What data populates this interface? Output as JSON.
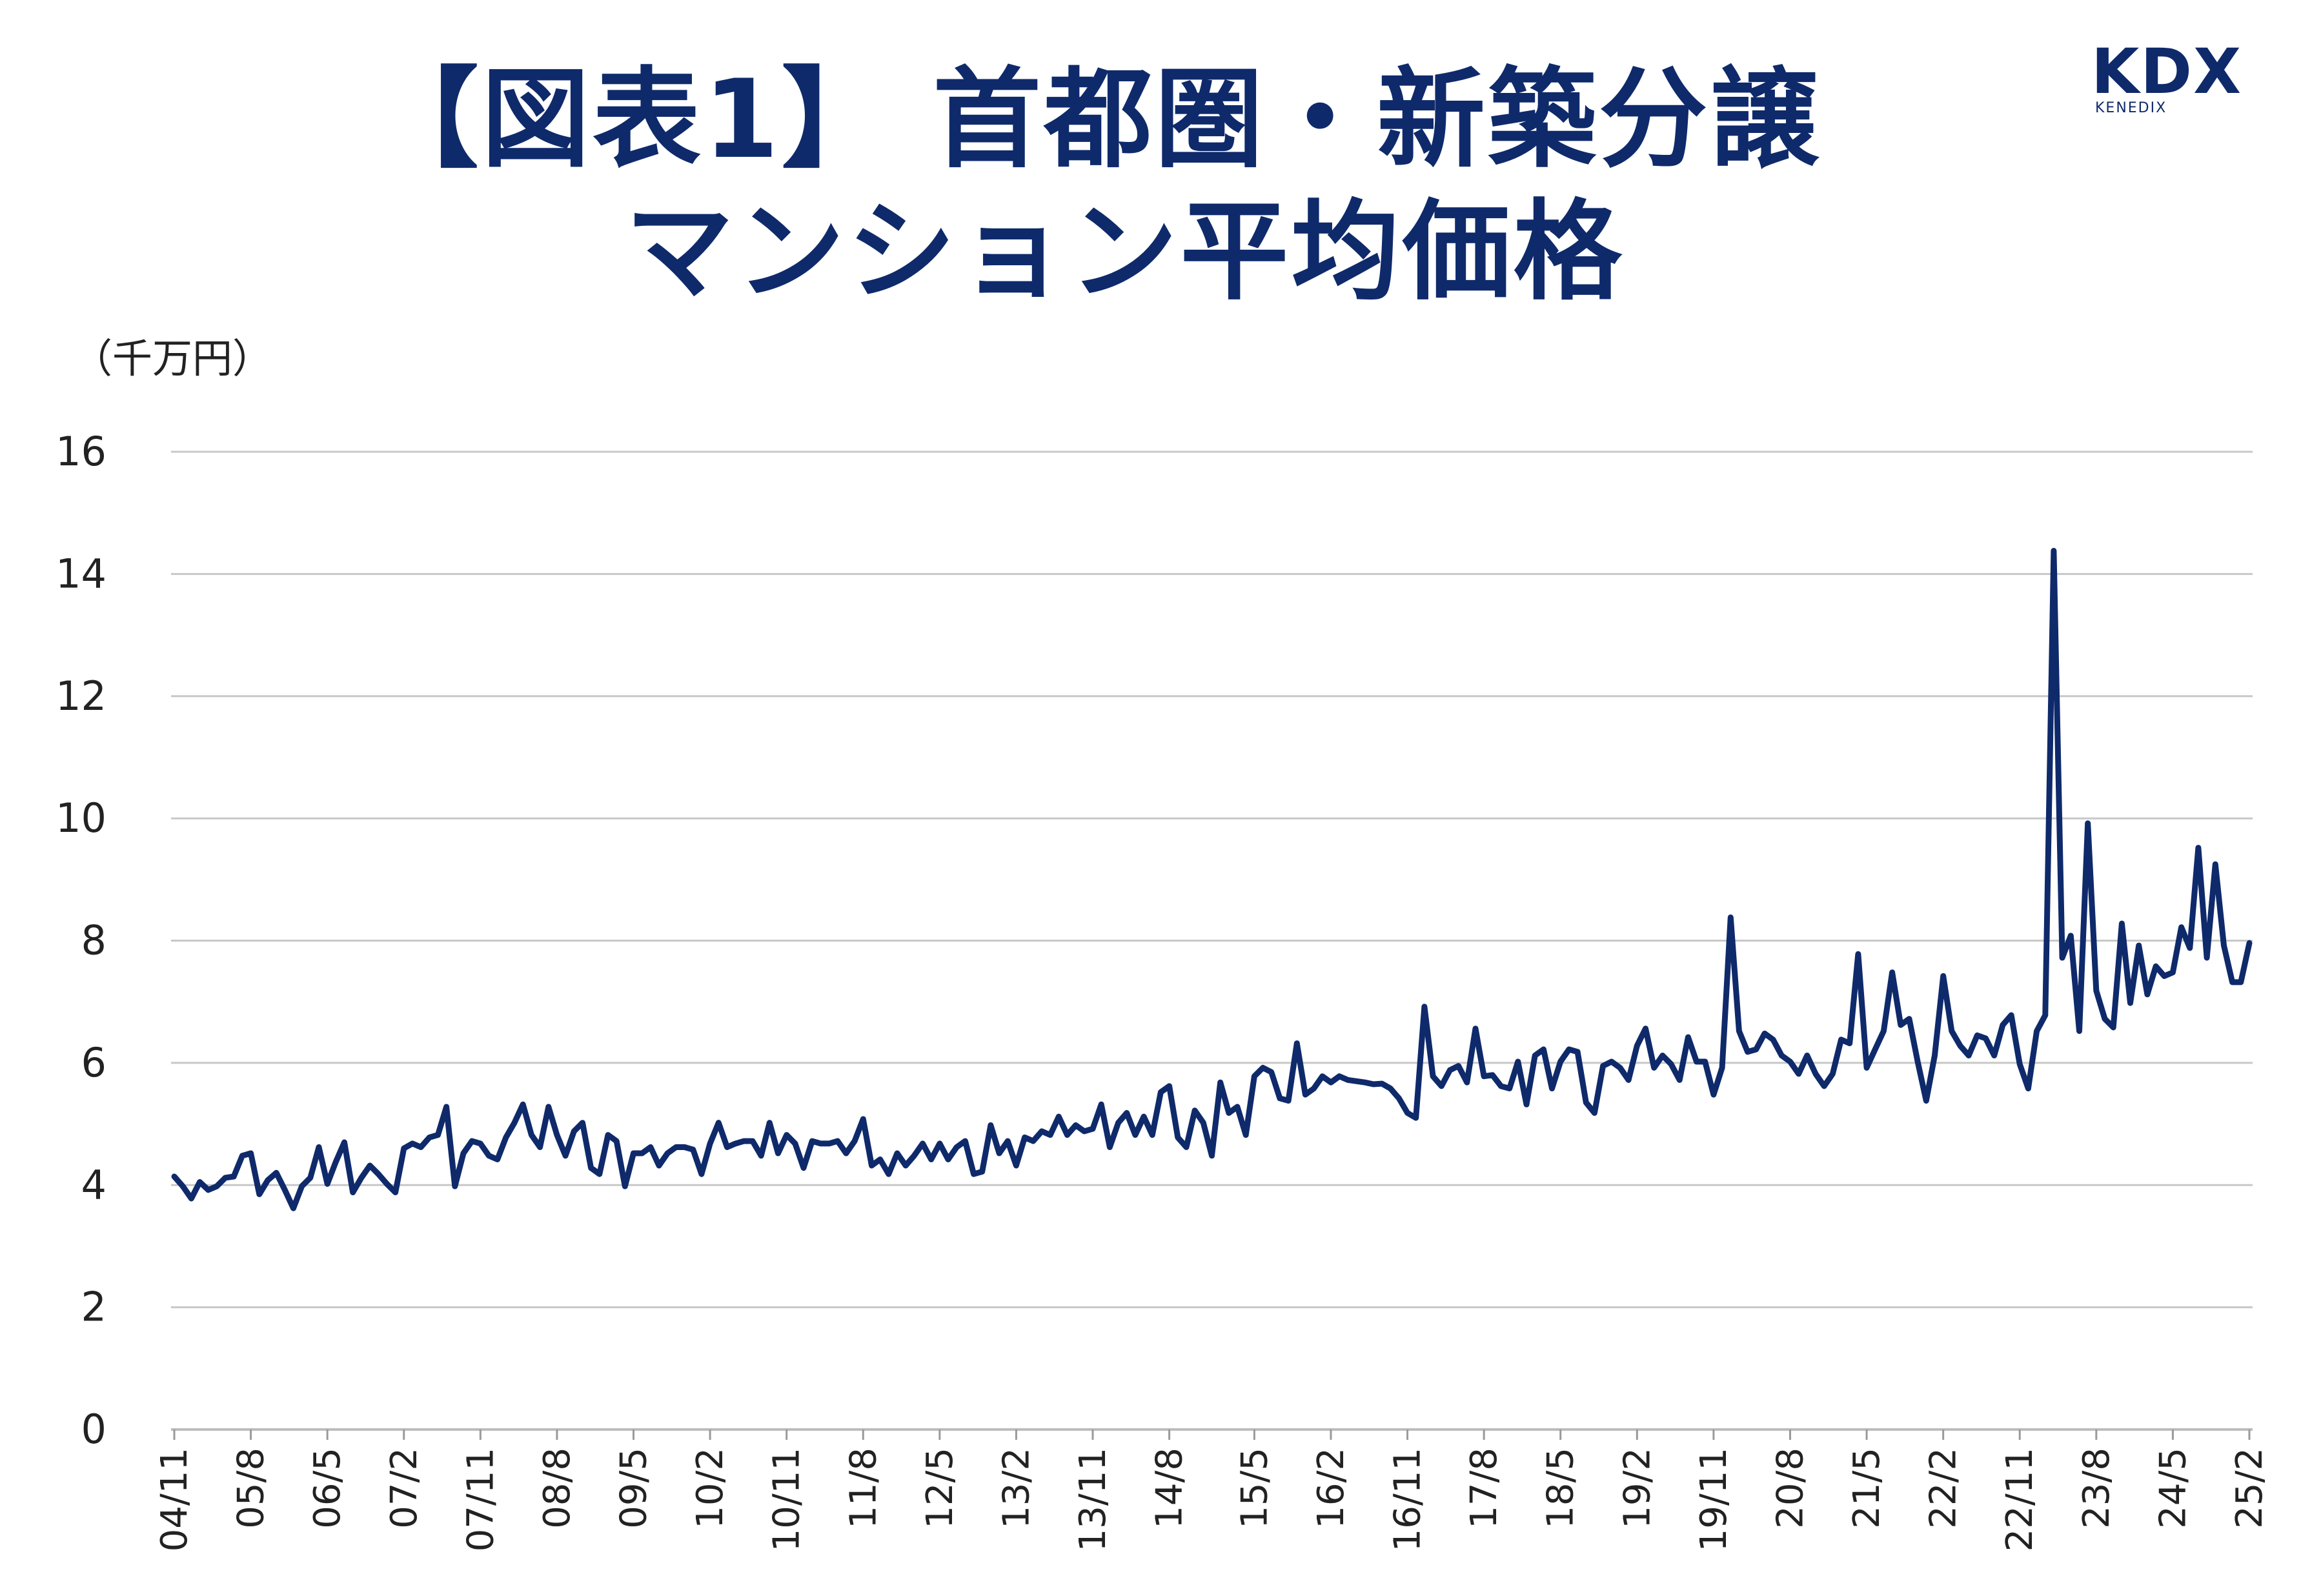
{
  "title": {
    "line1": "【図表1】 首都圏・新築分譲",
    "line2": "マンション平均価格"
  },
  "logo": {
    "main": "KDX",
    "sub": "KENEDIX"
  },
  "colors": {
    "title": "#0f2a6b",
    "line": "#0f2a6b",
    "grid": "#c8c8c8",
    "text": "#222222"
  },
  "chart_data": {
    "type": "line",
    "title": "【図表1】 首都圏・新築分譲 マンション平均価格",
    "ylabel": "（千万円）",
    "xlabel": "",
    "ylim": [
      0,
      16
    ],
    "yticks": [
      0,
      2,
      4,
      6,
      8,
      10,
      12,
      14,
      16
    ],
    "grid": true,
    "xtick_labels": [
      "04/11",
      "05/8",
      "06/5",
      "07/2",
      "07/11",
      "08/8",
      "09/5",
      "10/2",
      "10/11",
      "11/8",
      "12/5",
      "13/2",
      "13/11",
      "14/8",
      "15/5",
      "16/2",
      "16/11",
      "17/8",
      "18/5",
      "19/2",
      "19/11",
      "20/8",
      "21/5",
      "22/2",
      "22/11",
      "23/8",
      "24/5",
      "25/2"
    ],
    "x_start": "04/11",
    "x_end": "25/2",
    "series": [
      {
        "name": "首都圏・新築分譲マンション平均価格",
        "values": [
          4.14,
          3.98,
          3.78,
          4.05,
          3.92,
          3.98,
          4.12,
          4.14,
          4.48,
          4.52,
          3.85,
          4.08,
          4.2,
          3.92,
          3.62,
          3.98,
          4.12,
          4.62,
          4.02,
          4.38,
          4.7,
          3.88,
          4.12,
          4.32,
          4.18,
          4.02,
          3.88,
          4.6,
          4.68,
          4.62,
          4.78,
          4.82,
          5.28,
          3.98,
          4.52,
          4.72,
          4.68,
          4.48,
          4.42,
          4.78,
          5.02,
          5.32,
          4.82,
          4.62,
          5.28,
          4.82,
          4.48,
          4.88,
          5.02,
          4.28,
          4.18,
          4.82,
          4.72,
          3.98,
          4.52,
          4.52,
          4.62,
          4.32,
          4.52,
          4.62,
          4.62,
          4.58,
          4.18,
          4.68,
          5.02,
          4.62,
          4.68,
          4.72,
          4.72,
          4.48,
          5.02,
          4.52,
          4.82,
          4.68,
          4.28,
          4.72,
          4.68,
          4.68,
          4.72,
          4.52,
          4.72,
          5.08,
          4.32,
          4.42,
          4.18,
          4.52,
          4.32,
          4.48,
          4.68,
          4.42,
          4.68,
          4.42,
          4.62,
          4.72,
          4.18,
          4.22,
          4.98,
          4.52,
          4.72,
          4.32,
          4.78,
          4.72,
          4.88,
          4.82,
          5.12,
          4.82,
          4.98,
          4.88,
          4.92,
          5.32,
          4.62,
          5.02,
          5.18,
          4.82,
          5.12,
          4.82,
          5.52,
          5.62,
          4.78,
          4.62,
          5.22,
          5.02,
          4.48,
          5.68,
          5.18,
          5.28,
          4.82,
          5.78,
          5.92,
          5.85,
          5.42,
          5.38,
          6.32,
          5.48,
          5.58,
          5.78,
          5.68,
          5.78,
          5.72,
          5.7,
          5.68,
          5.65,
          5.66,
          5.58,
          5.42,
          5.18,
          5.1,
          6.92,
          5.78,
          5.62,
          5.88,
          5.95,
          5.68,
          6.56,
          5.78,
          5.8,
          5.62,
          5.58,
          6.02,
          5.32,
          6.12,
          6.22,
          5.58,
          6.02,
          6.22,
          6.18,
          5.35,
          5.18,
          5.95,
          6.02,
          5.92,
          5.72,
          6.28,
          6.56,
          5.92,
          6.12,
          5.98,
          5.72,
          6.42,
          6.02,
          6.02,
          5.48,
          5.92,
          8.38,
          6.52,
          6.18,
          6.22,
          6.48,
          6.38,
          6.12,
          6.02,
          5.82,
          6.12,
          5.82,
          5.62,
          5.82,
          6.38,
          6.32,
          7.78,
          5.92,
          6.22,
          6.52,
          7.48,
          6.62,
          6.72,
          6.02,
          5.38,
          6.12,
          7.42,
          6.52,
          6.28,
          6.12,
          6.45,
          6.4,
          6.12,
          6.62,
          6.78,
          5.98,
          5.58,
          6.52,
          6.78,
          14.38,
          7.72,
          8.08,
          6.52,
          9.92,
          7.18,
          6.72,
          6.58,
          8.28,
          6.98,
          7.92,
          7.12,
          7.58,
          7.42,
          7.48,
          8.22,
          7.88,
          9.52,
          7.72,
          9.25,
          7.92,
          7.32,
          7.32,
          7.96
        ]
      }
    ]
  }
}
